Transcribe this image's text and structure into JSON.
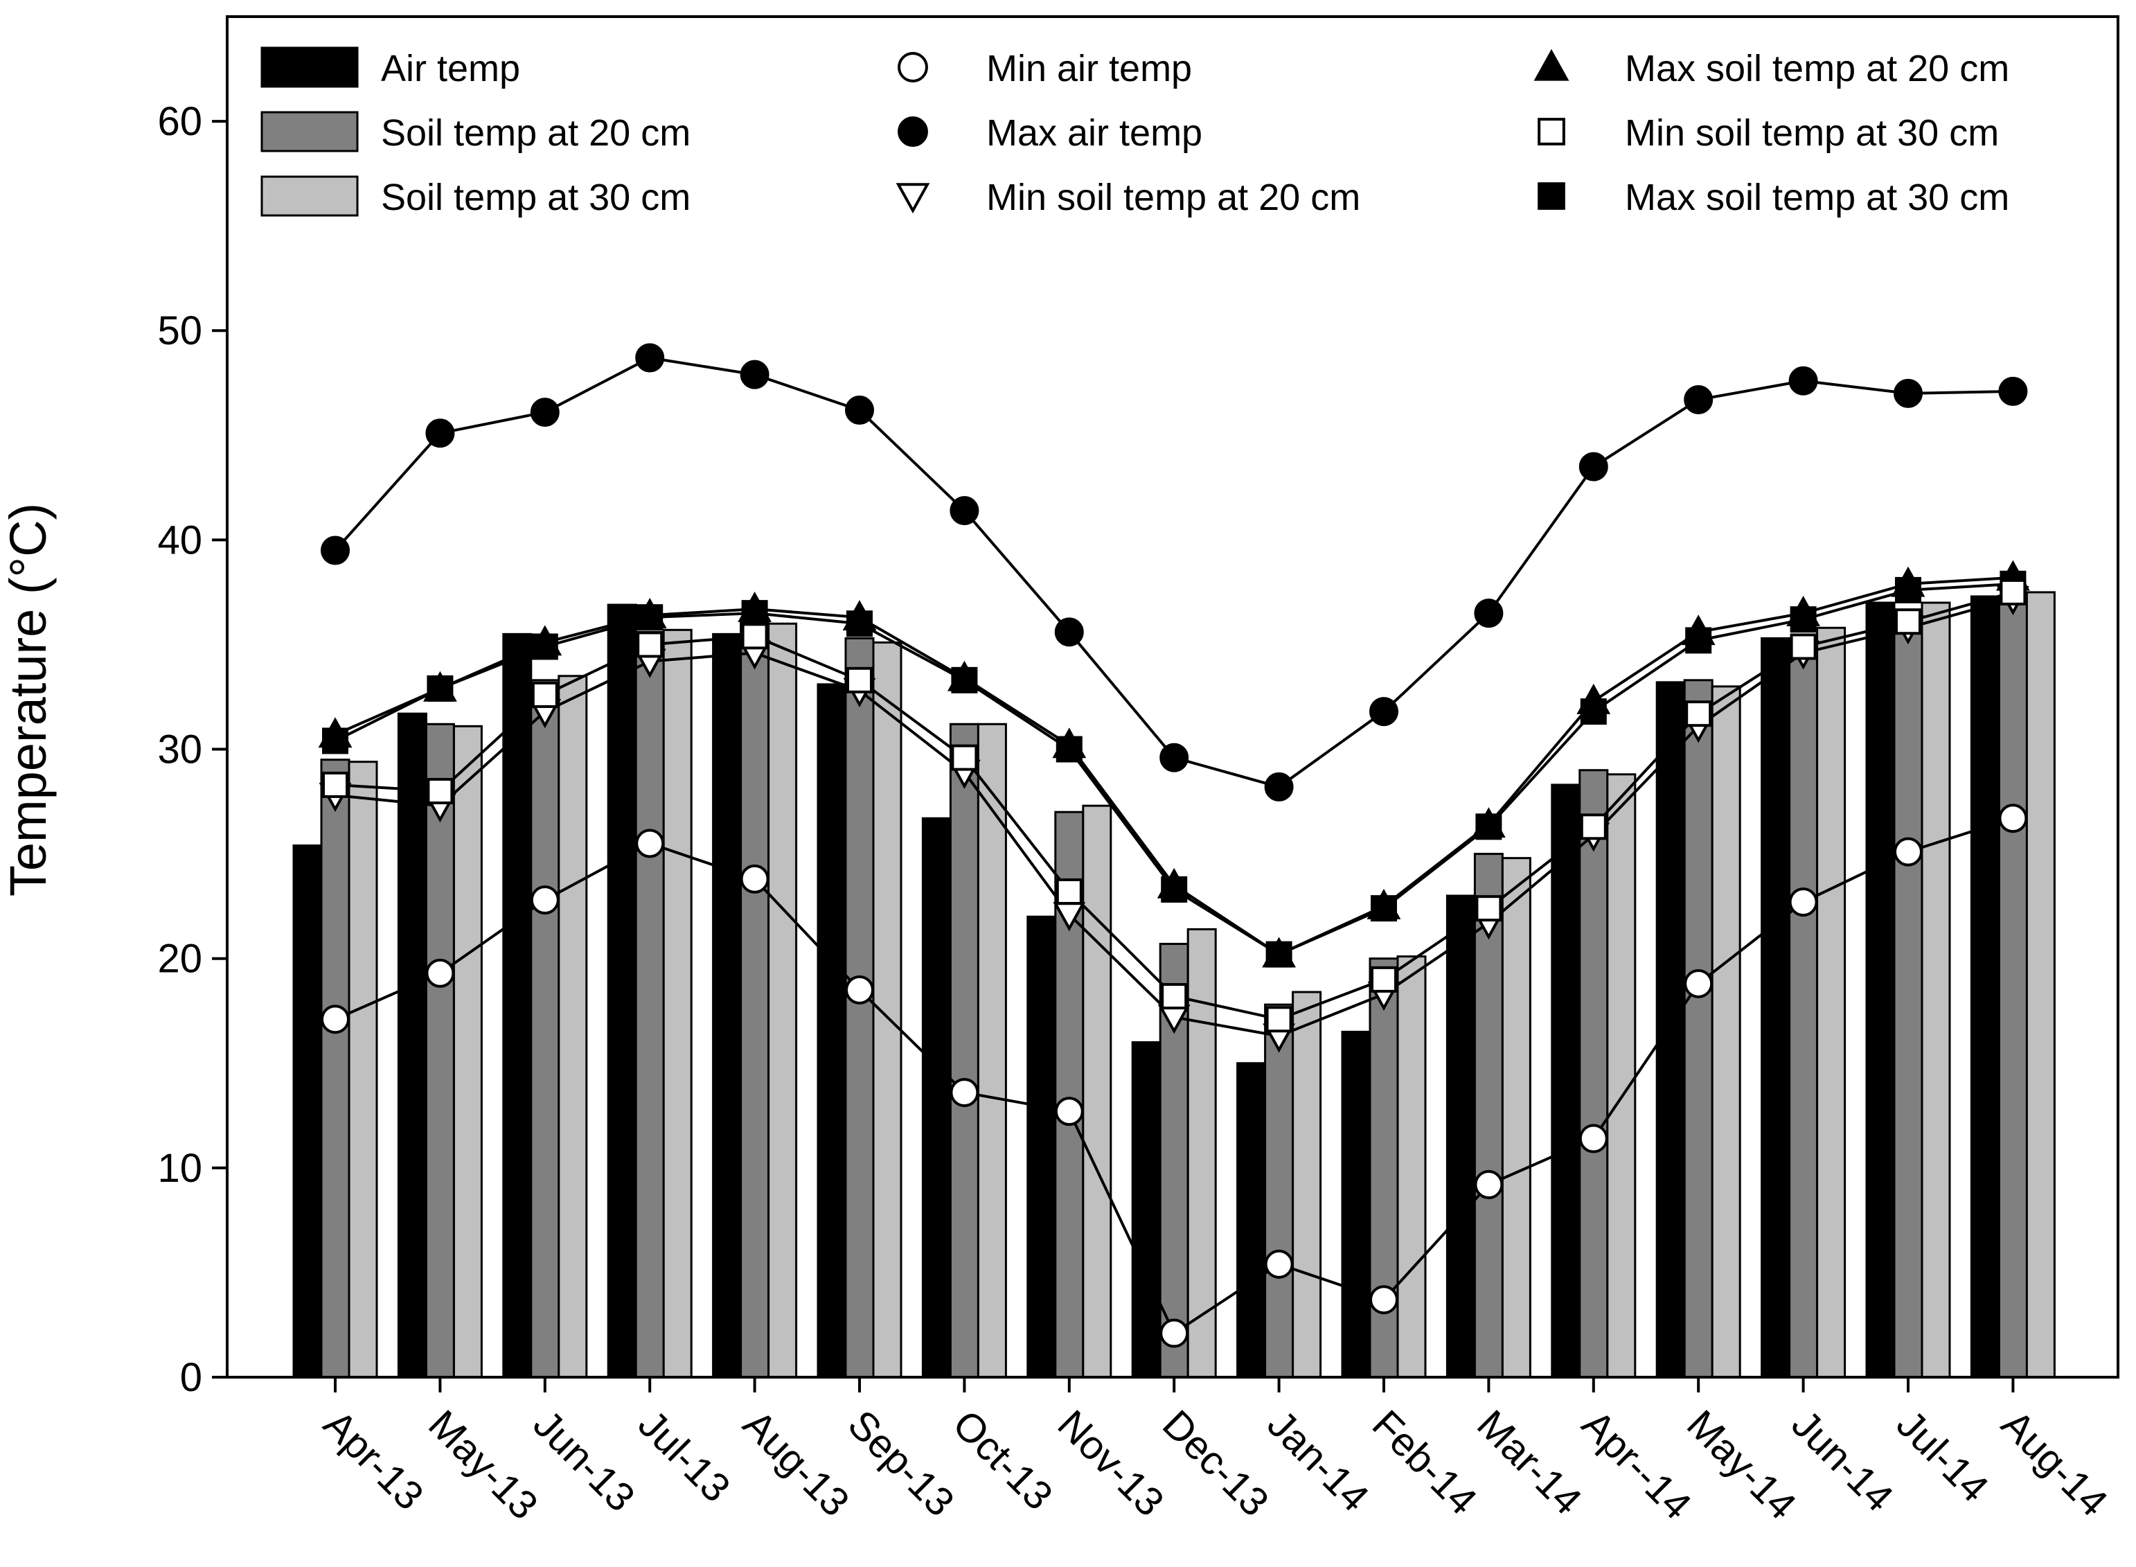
{
  "chart_data": {
    "type": "bar",
    "title": "",
    "xlabel": "",
    "ylabel": "Temperature (°C)",
    "ylim": [
      0,
      65
    ],
    "yticks": [
      0,
      10,
      20,
      30,
      40,
      50,
      60
    ],
    "grid": false,
    "legend_position": "top",
    "categories": [
      "Apr-13",
      "May-13",
      "Jun-13",
      "Jul-13",
      "Aug-13",
      "Sep-13",
      "Oct-13",
      "Nov-13",
      "Dec-13",
      "Jan-14",
      "Feb-14",
      "Mar-14",
      "Apr--14",
      "May-14",
      "Jun-14",
      "Jul-14",
      "Aug-14"
    ],
    "bar_series": [
      {
        "name": "Air temp",
        "color": "#000000",
        "values": [
          25.4,
          31.7,
          35.5,
          36.9,
          35.5,
          33.1,
          26.7,
          22.0,
          16.0,
          15.0,
          16.5,
          23.0,
          28.3,
          33.2,
          35.3,
          37.0,
          37.3
        ]
      },
      {
        "name": "Soil temp at 20 cm",
        "color": "#808080",
        "values": [
          29.5,
          31.2,
          33.3,
          35.6,
          36.2,
          35.3,
          31.2,
          27.0,
          20.7,
          17.8,
          20.0,
          25.0,
          29.0,
          33.3,
          35.3,
          36.4,
          37.3
        ]
      },
      {
        "name": "Soil temp at 30 cm",
        "color": "#c0c0c0",
        "values": [
          29.4,
          31.1,
          33.5,
          35.7,
          36.0,
          35.1,
          31.2,
          27.3,
          21.4,
          18.4,
          20.1,
          24.8,
          28.8,
          33.0,
          35.8,
          37.0,
          37.5
        ]
      }
    ],
    "line_series": [
      {
        "name": "Min air temp",
        "marker": "circle-open",
        "values": [
          17.1,
          19.3,
          22.8,
          25.5,
          23.8,
          18.5,
          13.6,
          12.7,
          2.1,
          5.4,
          3.7,
          9.2,
          11.4,
          18.8,
          22.7,
          25.1,
          26.7
        ]
      },
      {
        "name": "Max air temp",
        "marker": "circle-filled",
        "values": [
          39.5,
          45.1,
          46.1,
          48.7,
          47.9,
          46.2,
          41.4,
          35.6,
          29.6,
          28.2,
          31.8,
          36.5,
          43.5,
          46.7,
          47.6,
          47.0,
          47.1
        ]
      },
      {
        "name": "Min soil temp at 20 cm",
        "marker": "triangle-down-open",
        "values": [
          27.8,
          27.3,
          31.8,
          34.2,
          34.6,
          32.8,
          28.9,
          22.1,
          17.2,
          16.3,
          18.3,
          21.7,
          25.9,
          31.1,
          34.6,
          35.8,
          37.2
        ]
      },
      {
        "name": "Max soil temp at 20 cm",
        "marker": "triangle-up-filled",
        "values": [
          30.7,
          32.9,
          35.1,
          36.4,
          36.7,
          36.3,
          33.4,
          30.2,
          23.5,
          20.2,
          22.5,
          26.4,
          32.3,
          35.6,
          36.5,
          37.9,
          38.2
        ]
      },
      {
        "name": "Min soil temp at 30 cm",
        "marker": "square-open",
        "values": [
          28.3,
          28.0,
          32.6,
          35.0,
          35.4,
          33.3,
          29.6,
          23.2,
          18.2,
          17.1,
          19.0,
          22.4,
          26.3,
          31.7,
          34.9,
          36.1,
          37.5
        ]
      },
      {
        "name": "Max soil temp at 30 cm",
        "marker": "square-filled",
        "values": [
          30.4,
          32.9,
          34.9,
          36.3,
          36.5,
          36.0,
          33.3,
          30.0,
          23.3,
          20.2,
          22.4,
          26.3,
          31.8,
          35.2,
          36.2,
          37.6,
          37.9
        ]
      }
    ]
  }
}
